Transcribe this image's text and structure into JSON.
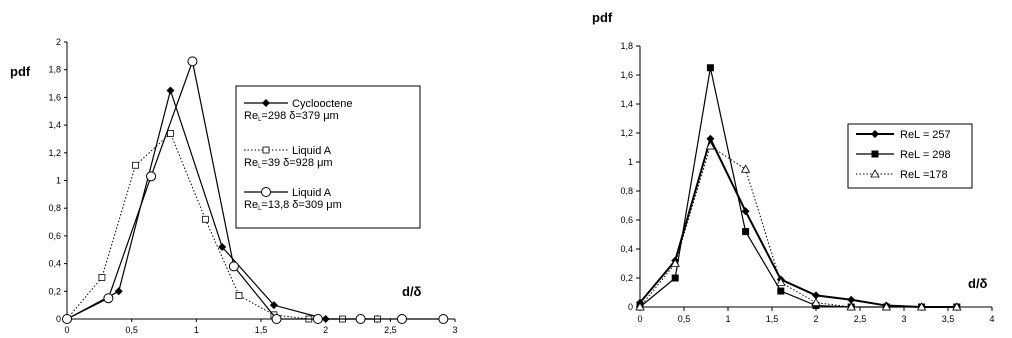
{
  "chart_data": [
    {
      "type": "line",
      "title": "",
      "xlabel": "d/δ",
      "ylabel": "pdf",
      "xlim": [
        0,
        3
      ],
      "ylim": [
        0,
        2
      ],
      "x_ticks": [
        "0",
        "0,5",
        "1",
        "1,5",
        "2",
        "2,5",
        "3"
      ],
      "y_ticks": [
        "0",
        "0,2",
        "0,4",
        "0,6",
        "0,8",
        "1",
        "1,2",
        "1,4",
        "1,6",
        "1,8",
        "2"
      ],
      "grid": false,
      "legend_position": "right",
      "series": [
        {
          "name": "Cyclooctene",
          "name_line2": {
            "re": "Re",
            "sub": "L",
            "value": "=298 δ=379 μm"
          },
          "marker": "filled-diamond",
          "line_style": "solid",
          "color": "#000000",
          "x": [
            0,
            0.4,
            0.8,
            1.2,
            1.6,
            2.0,
            2.4
          ],
          "y": [
            0,
            0.2,
            1.65,
            0.52,
            0.1,
            0,
            0
          ]
        },
        {
          "name": "Liquid A",
          "name_line2": {
            "re": "Re",
            "sub": "L",
            "value": "=39 δ=928 μm"
          },
          "marker": "open-square",
          "line_style": "dotted",
          "color": "#000000",
          "x": [
            0,
            0.27,
            0.53,
            0.8,
            1.07,
            1.33,
            1.6,
            1.87,
            2.13,
            2.4
          ],
          "y": [
            0,
            0.3,
            1.11,
            1.34,
            0.72,
            0.17,
            0.03,
            0,
            0,
            0
          ]
        },
        {
          "name": "Liquid A",
          "name_line2": {
            "re": "Re",
            "sub": "L",
            "value": "=13,8 δ=309 μm"
          },
          "marker": "open-circle",
          "line_style": "solid",
          "color": "#000000",
          "x": [
            0,
            0.32,
            0.65,
            0.97,
            1.29,
            1.62,
            1.94,
            2.27,
            2.59,
            2.91
          ],
          "y": [
            0,
            0.15,
            1.03,
            1.86,
            0.38,
            0,
            0,
            0,
            0,
            0
          ]
        }
      ]
    },
    {
      "type": "line",
      "title": "",
      "xlabel": "d/δ",
      "ylabel": "pdf",
      "xlim": [
        0,
        4
      ],
      "ylim": [
        0,
        1.8
      ],
      "x_ticks": [
        "0",
        "0,5",
        "1",
        "1,5",
        "2",
        "2,5",
        "3",
        "3,5",
        "4"
      ],
      "y_ticks": [
        "0",
        "0,2",
        "0,4",
        "0,6",
        "0,8",
        "1",
        "1,2",
        "1,4",
        "1,6",
        "1,8"
      ],
      "grid": false,
      "legend_position": "top-right",
      "series": [
        {
          "name": "ReL = 257",
          "marker": "filled-diamond",
          "line_style": "solid-thick",
          "color": "#000000",
          "x": [
            0,
            0.4,
            0.8,
            1.2,
            1.6,
            2.0,
            2.4,
            2.8,
            3.2,
            3.6
          ],
          "y": [
            0.03,
            0.32,
            1.16,
            0.66,
            0.19,
            0.08,
            0.05,
            0.01,
            0,
            0
          ]
        },
        {
          "name": "ReL = 298",
          "marker": "filled-square",
          "line_style": "solid",
          "color": "#000000",
          "x": [
            0,
            0.4,
            0.8,
            1.2,
            1.6,
            2.0,
            2.4,
            2.8,
            3.2,
            3.6
          ],
          "y": [
            0,
            0.2,
            1.65,
            0.52,
            0.11,
            0.01,
            0,
            0,
            0,
            0
          ]
        },
        {
          "name": "ReL =178",
          "marker": "open-triangle",
          "line_style": "dotted",
          "color": "#000000",
          "x": [
            0,
            0.4,
            0.8,
            1.2,
            1.6,
            2.0,
            2.4,
            2.8,
            3.2,
            3.6
          ],
          "y": [
            0,
            0.3,
            1.11,
            0.95,
            0.17,
            0.03,
            0,
            0,
            0,
            0
          ]
        }
      ]
    }
  ]
}
